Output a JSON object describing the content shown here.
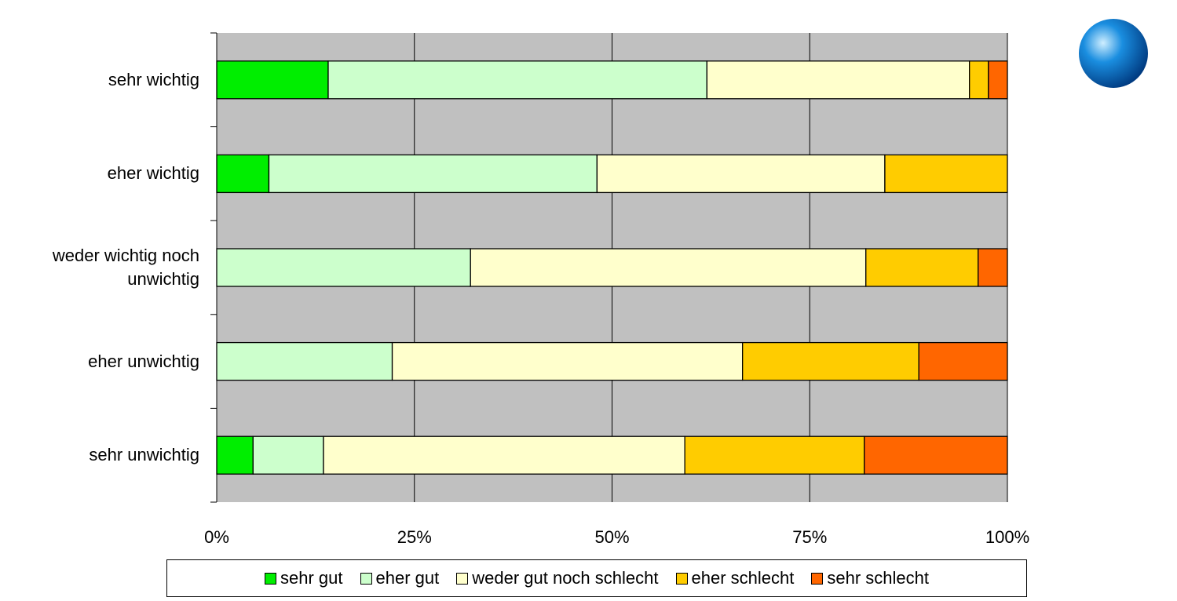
{
  "chart_data": {
    "type": "stacked-bar-horizontal",
    "categories": [
      "sehr wichtig",
      "eher wichtig",
      "weder wichtig noch unwichtig",
      "eher unwichtig",
      "sehr unwichtig"
    ],
    "series": [
      {
        "name": "sehr gut",
        "color": "#00ee00",
        "values": [
          14.1,
          6.6,
          0,
          0,
          4.6
        ]
      },
      {
        "name": "eher gut",
        "color": "#ccffcc",
        "values": [
          47.9,
          41.5,
          32.1,
          22.2,
          8.9
        ]
      },
      {
        "name": "weder gut noch schlecht",
        "color": "#ffffcc",
        "values": [
          33.2,
          36.4,
          50.0,
          44.3,
          45.7
        ]
      },
      {
        "name": "eher schlecht",
        "color": "#ffcc00",
        "values": [
          2.4,
          15.5,
          14.2,
          22.3,
          22.7
        ]
      },
      {
        "name": "sehr schlecht",
        "color": "#ff6600",
        "values": [
          2.4,
          0,
          3.7,
          11.2,
          18.1
        ]
      }
    ],
    "xlim": [
      0,
      100
    ],
    "xticks": [
      {
        "value": 0,
        "label": "0%"
      },
      {
        "value": 25,
        "label": "25%"
      },
      {
        "value": 50,
        "label": "50%"
      },
      {
        "value": 75,
        "label": "75%"
      },
      {
        "value": 100,
        "label": "100%"
      }
    ],
    "grid": true,
    "legend": "bottom"
  }
}
